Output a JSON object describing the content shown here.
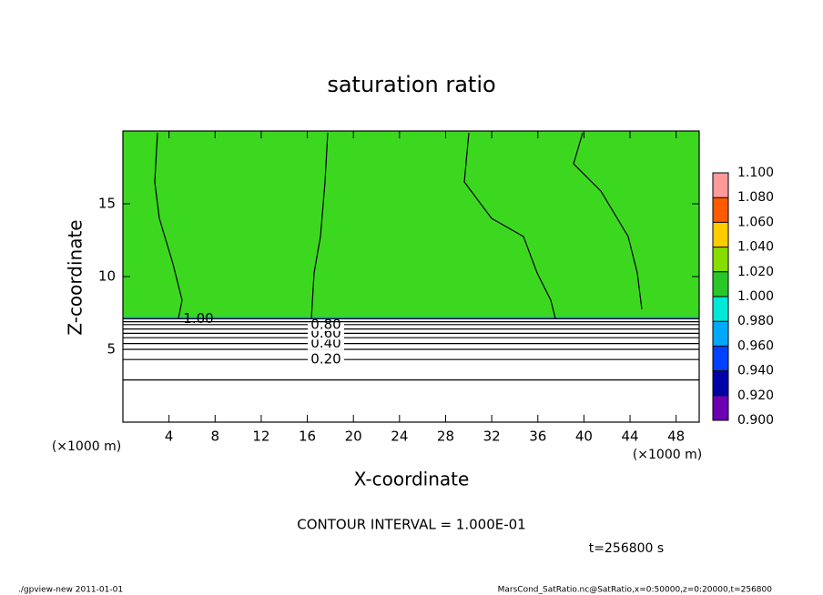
{
  "chart_data": {
    "type": "contour",
    "title": "saturation ratio",
    "x_label": "X-coordinate",
    "y_label": "Z-coordinate",
    "x_unit": "(×1000 m)",
    "xlim": [
      0,
      50
    ],
    "ylim": [
      0,
      20
    ],
    "xticks": [
      4,
      8,
      12,
      16,
      20,
      24,
      28,
      32,
      36,
      40,
      44,
      48
    ],
    "yticks": [
      5,
      10,
      15
    ],
    "field_color": "#3cd820",
    "contours": [
      {
        "level": 0.1,
        "z": 2.9
      },
      {
        "level": 0.2,
        "z": 4.3,
        "label": "0.20"
      },
      {
        "level": 0.3,
        "z": 5.0
      },
      {
        "level": 0.4,
        "z": 5.4,
        "label": "0.40"
      },
      {
        "level": 0.5,
        "z": 5.8
      },
      {
        "level": 0.6,
        "z": 6.1,
        "label": "0.60"
      },
      {
        "level": 0.7,
        "z": 6.4
      },
      {
        "level": 0.8,
        "z": 6.7,
        "label": "0.80"
      },
      {
        "level": 0.9,
        "z": 6.9
      },
      {
        "level": 1.0,
        "z": 7.1,
        "label": "1.00"
      }
    ],
    "colorbar": {
      "ticks": [
        {
          "value": 0.9,
          "label": "0.900"
        },
        {
          "value": 0.92,
          "label": "0.920"
        },
        {
          "value": 0.94,
          "label": "0.940"
        },
        {
          "value": 0.96,
          "label": "0.960"
        },
        {
          "value": 0.98,
          "label": "0.980"
        },
        {
          "value": 1.0,
          "label": "1.000"
        },
        {
          "value": 1.02,
          "label": "1.020"
        },
        {
          "value": 1.04,
          "label": "1.040"
        },
        {
          "value": 1.06,
          "label": "1.060"
        },
        {
          "value": 1.08,
          "label": "1.080"
        },
        {
          "value": 1.1,
          "label": "1.100"
        }
      ],
      "colors": [
        "#6a00b0",
        "#0000a8",
        "#0040ff",
        "#00a8ff",
        "#00e8d8",
        "#28c828",
        "#88dd00",
        "#ffcc00",
        "#ff5a00",
        "#ff9a9a"
      ]
    },
    "contour_interval": "CONTOUR INTERVAL = 1.000E-01",
    "time": "t=256800 s",
    "footer_left": "./gpview-new   2011-01-01",
    "footer_right": "MarsCond_SatRatio.nc@SatRatio,x=0:50000,z=0:20000,t=256800"
  }
}
